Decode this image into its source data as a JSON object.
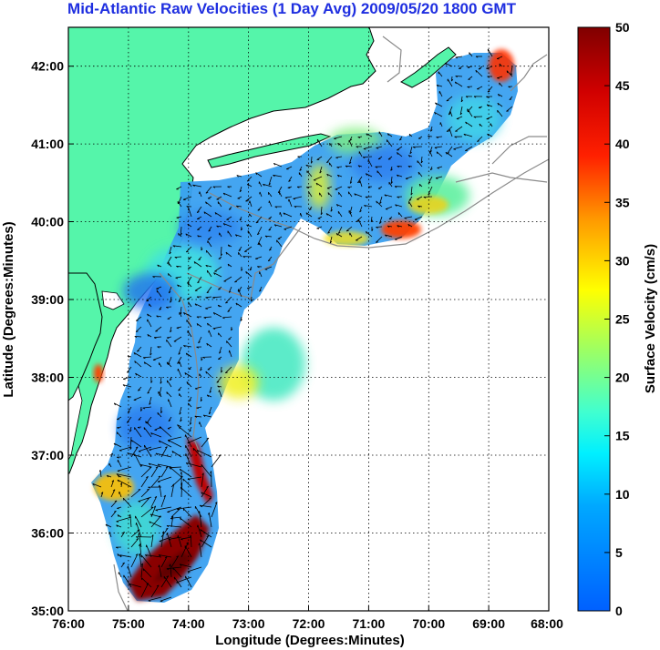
{
  "title": "Mid-Atlantic Raw Velocities (1 Day Avg) 2009/05/20 1800 GMT",
  "xlabel": "Longitude (Degrees:Minutes)",
  "ylabel": "Latitude (Degrees:Minutes)",
  "x_ticks": [
    "76:00",
    "75:00",
    "74:00",
    "73:00",
    "72:00",
    "71:00",
    "70:00",
    "69:00",
    "68:00"
  ],
  "y_ticks": [
    "42:00",
    "41:00",
    "40:00",
    "39:00",
    "38:00",
    "37:00",
    "36:00",
    "35:00"
  ],
  "colorbar": {
    "label": "Surface Velocity (cm/s)",
    "ticks": [
      "50",
      "45",
      "40",
      "35",
      "30",
      "25",
      "20",
      "15",
      "10",
      "5",
      "0"
    ],
    "min": 0,
    "max": 50
  },
  "colors": {
    "land": "#55f5aa",
    "coast": "#000000",
    "title": "#1f2fe0"
  },
  "chart_data": {
    "type": "heatmap",
    "title": "Mid-Atlantic Raw Velocities (1 Day Avg) 2009/05/20 1800 GMT",
    "xlabel": "Longitude (Degrees:Minutes)",
    "ylabel": "Latitude (Degrees:Minutes)",
    "xlim": [
      -76,
      -68
    ],
    "ylim": [
      35,
      42.5
    ],
    "grid": true,
    "colorbar_range": [
      0,
      50
    ],
    "hotspots": [
      {
        "lon": -74.5,
        "lat": 35.4,
        "speed": 50
      },
      {
        "lon": -74.1,
        "lat": 36.9,
        "speed": 48
      },
      {
        "lon": -70.3,
        "lat": 40.0,
        "speed": 40
      },
      {
        "lon": -68.3,
        "lat": 42.0,
        "speed": 40
      },
      {
        "lon": -75.2,
        "lat": 36.75,
        "speed": 28
      },
      {
        "lon": -73.5,
        "lat": 37.9,
        "speed": 26
      },
      {
        "lon": -70.5,
        "lat": 40.3,
        "speed": 25
      },
      {
        "lon": -71.9,
        "lat": 39.85,
        "speed": 28
      },
      {
        "lon": -72.3,
        "lat": 40.55,
        "speed": 22
      }
    ]
  }
}
